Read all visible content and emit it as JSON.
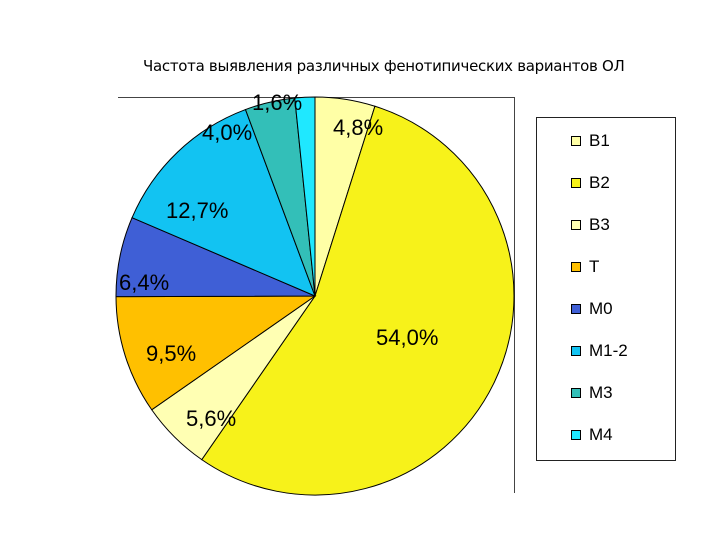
{
  "chart_data": {
    "type": "pie",
    "title": "Частота выявления различных фенотипических вариантов ОЛ",
    "slices": [
      {
        "name": "B1",
        "value": 4.8,
        "label": "4,8%",
        "color": "#FFFFA6"
      },
      {
        "name": "B2",
        "value": 54.0,
        "label": "54,0%",
        "color": "#F7F21A"
      },
      {
        "name": "B3",
        "value": 5.6,
        "label": "5,6%",
        "color": "#FFFFB3"
      },
      {
        "name": "T",
        "value": 9.5,
        "label": "9,5%",
        "color": "#FFC000"
      },
      {
        "name": "M0",
        "value": 6.4,
        "label": "6,4%",
        "color": "#3F5FD6"
      },
      {
        "name": "M1-2",
        "value": 12.7,
        "label": "12,7%",
        "color": "#12C3F2"
      },
      {
        "name": "M3",
        "value": 4.0,
        "label": "4,0%",
        "color": "#33BFB8"
      },
      {
        "name": "M4",
        "value": 1.6,
        "label": "1,6%",
        "color": "#1FE8FF"
      }
    ],
    "legend_position": "right"
  }
}
